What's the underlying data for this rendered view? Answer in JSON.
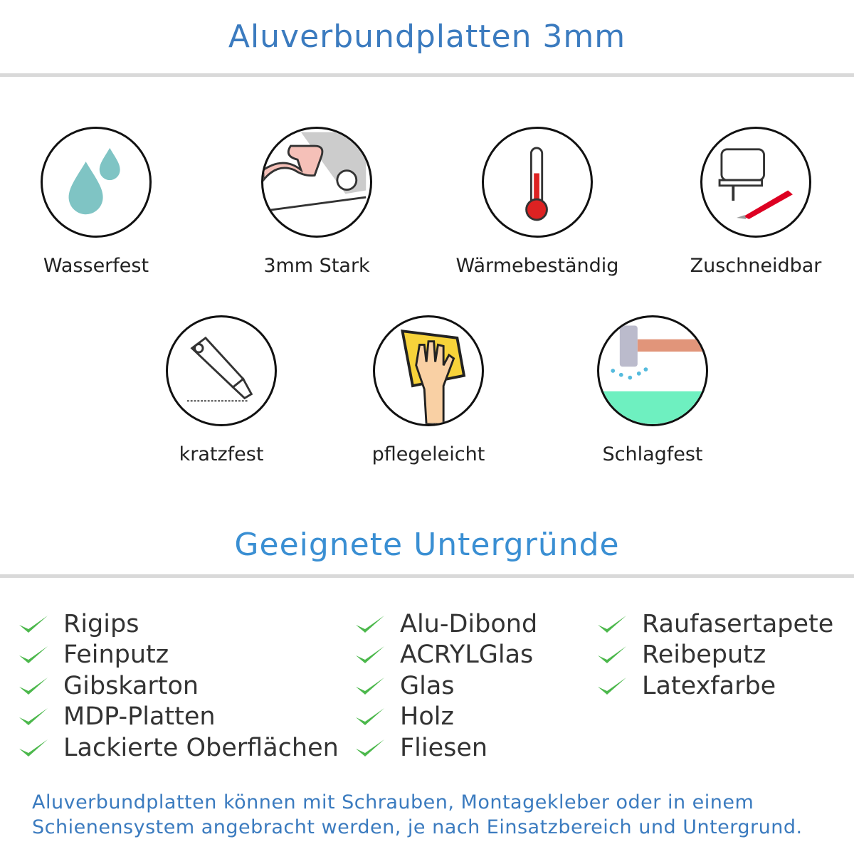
{
  "header": {
    "title": "Aluverbundplatten 3mm"
  },
  "features": [
    {
      "label": "Wasserfest",
      "icon": "water-drops-icon"
    },
    {
      "label": "3mm Stark",
      "icon": "strong-arm-icon"
    },
    {
      "label": "Wärmebeständig",
      "icon": "thermometer-icon"
    },
    {
      "label": "Zuschneidbar",
      "icon": "jigsaw-icon"
    },
    {
      "label": "kratzfest",
      "icon": "cutter-knife-icon"
    },
    {
      "label": "pflegeleicht",
      "icon": "cleaning-hand-icon"
    },
    {
      "label": "Schlagfest",
      "icon": "hammer-icon"
    }
  ],
  "substrates": {
    "title": "Geeignete Untergründe",
    "columns": [
      [
        "Rigips",
        "Feinputz",
        "Gibskarton",
        "MDP-Platten",
        "Lackierte Oberflächen"
      ],
      [
        "Alu-Dibond",
        "ACRYLGlas",
        "Glas",
        "Holz",
        "Fliesen"
      ],
      [
        "Raufasertapete",
        "Reibeputz",
        "Latexfarbe"
      ]
    ],
    "check_color": "#4cb84c"
  },
  "footer": {
    "line1": "Aluverbundplatten können mit Schrauben, Montagekleber oder in einem",
    "line2": "Schienensystem angebracht werden, je nach Einsatzbereich und Untergrund."
  },
  "colors": {
    "title": "#3b7bbf",
    "subtitle": "#3a8fd3",
    "separator": "#d9d9d9"
  }
}
